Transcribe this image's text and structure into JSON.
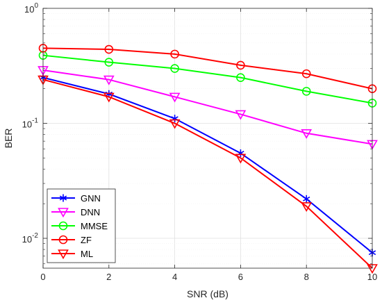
{
  "chart_data": {
    "type": "line",
    "xlabel": "SNR (dB)",
    "ylabel": "BER",
    "x": [
      0,
      2,
      4,
      6,
      8,
      10
    ],
    "xlim": [
      0,
      10
    ],
    "ylim": [
      0.0055,
      1
    ],
    "yscale": "log",
    "grid": true,
    "legend_position": "bottom-left",
    "x_ticks": [
      "0",
      "2",
      "4",
      "6",
      "8",
      "10"
    ],
    "y_ticks": [
      {
        "value": 1,
        "base": "10",
        "exp": "0"
      },
      {
        "value": 0.1,
        "base": "10",
        "exp": "-1"
      },
      {
        "value": 0.01,
        "base": "10",
        "exp": "-2"
      }
    ],
    "series": [
      {
        "name": "GNN",
        "color": "#0000ff",
        "marker": "asterisk",
        "values": [
          0.25,
          0.18,
          0.11,
          0.055,
          0.022,
          0.0075
        ]
      },
      {
        "name": "DNN",
        "color": "#ff00ff",
        "marker": "triangle-down",
        "values": [
          0.29,
          0.24,
          0.17,
          0.12,
          0.082,
          0.066
        ]
      },
      {
        "name": "MMSE",
        "color": "#00ff00",
        "marker": "circle",
        "values": [
          0.39,
          0.34,
          0.3,
          0.25,
          0.19,
          0.15
        ]
      },
      {
        "name": "ZF",
        "color": "#ff0000",
        "marker": "circle",
        "values": [
          0.45,
          0.44,
          0.4,
          0.32,
          0.27,
          0.2
        ]
      },
      {
        "name": "ML",
        "color": "#ff0000",
        "marker": "triangle-down",
        "values": [
          0.24,
          0.17,
          0.1,
          0.05,
          0.019,
          0.0055
        ]
      }
    ]
  }
}
